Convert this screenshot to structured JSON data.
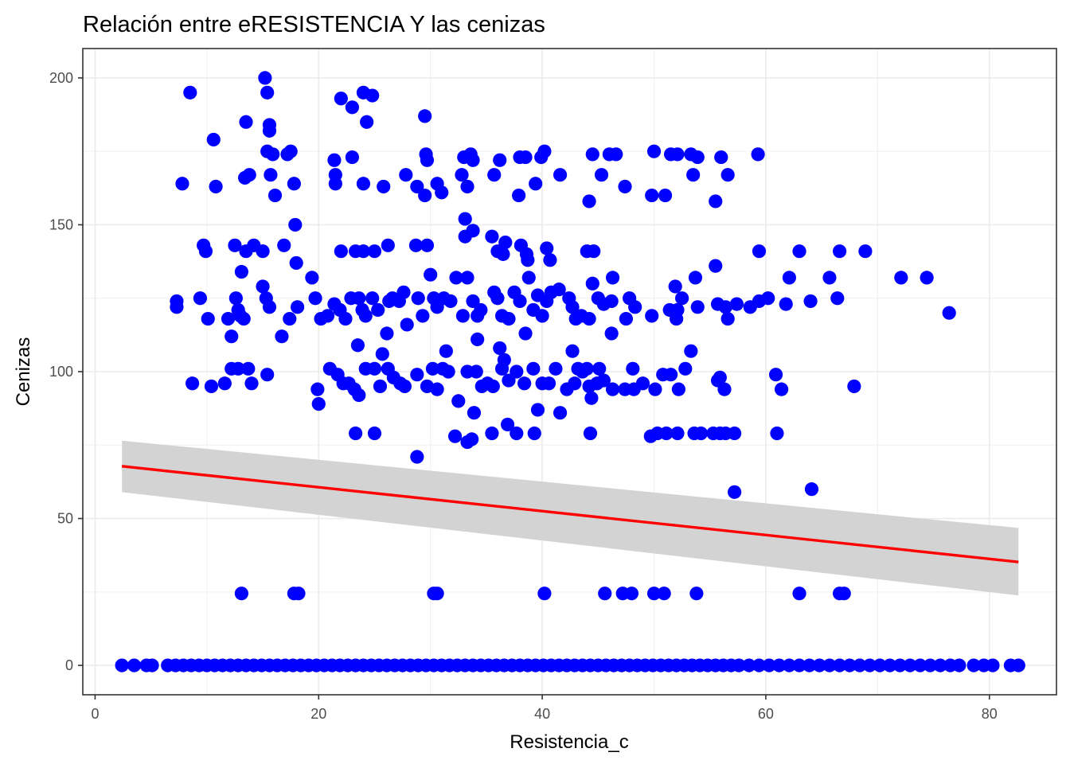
{
  "chart_data": {
    "type": "scatter",
    "title": "Relación entre eRESISTENCIA Y las cenizas",
    "xlabel": "Resistencia_c",
    "ylabel": "Cenizas",
    "xlim": [
      -1.1,
      86
    ],
    "ylim": [
      -10,
      210
    ],
    "x_ticks": [
      0,
      20,
      40,
      60,
      80
    ],
    "y_ticks": [
      0,
      50,
      100,
      150,
      200
    ],
    "x_minor": [
      10,
      30,
      50,
      70
    ],
    "y_minor": [
      25,
      75,
      125,
      175
    ],
    "grid": true,
    "theme": "bw",
    "point_color": "#0000ff",
    "line_color": "#ff0000",
    "band_color": "#d3d3d3",
    "points": [
      [
        8.5,
        195
      ],
      [
        15.2,
        200
      ],
      [
        15.4,
        195
      ],
      [
        22,
        193
      ],
      [
        23,
        190
      ],
      [
        24,
        195
      ],
      [
        24.8,
        194
      ],
      [
        29.5,
        187
      ],
      [
        13.5,
        185
      ],
      [
        24.3,
        185
      ],
      [
        15.6,
        184
      ],
      [
        15.6,
        182
      ],
      [
        10.6,
        179
      ],
      [
        17.5,
        175
      ],
      [
        15.4,
        175
      ],
      [
        15.9,
        174
      ],
      [
        17.2,
        174
      ],
      [
        23,
        173
      ],
      [
        29.6,
        174
      ],
      [
        29.7,
        172
      ],
      [
        33,
        173
      ],
      [
        33.6,
        174
      ],
      [
        33.8,
        172
      ],
      [
        36.2,
        172
      ],
      [
        38,
        173
      ],
      [
        38.5,
        173
      ],
      [
        39.9,
        173
      ],
      [
        40.2,
        175
      ],
      [
        44.5,
        174
      ],
      [
        46,
        174
      ],
      [
        46.6,
        174
      ],
      [
        50,
        175
      ],
      [
        51.5,
        174
      ],
      [
        52.1,
        174
      ],
      [
        53.3,
        174
      ],
      [
        53.9,
        173
      ],
      [
        56,
        173
      ],
      [
        59.3,
        174
      ],
      [
        21.4,
        172
      ],
      [
        7.8,
        164
      ],
      [
        10.8,
        163
      ],
      [
        13.4,
        166
      ],
      [
        13.8,
        167
      ],
      [
        15.7,
        167
      ],
      [
        17.8,
        164
      ],
      [
        21.5,
        167
      ],
      [
        21.5,
        164
      ],
      [
        24,
        164
      ],
      [
        25.8,
        163
      ],
      [
        27.8,
        167
      ],
      [
        28.8,
        163
      ],
      [
        29.5,
        160
      ],
      [
        30.6,
        164
      ],
      [
        31,
        161
      ],
      [
        32.8,
        167
      ],
      [
        33.3,
        163
      ],
      [
        35.7,
        167
      ],
      [
        37.9,
        160
      ],
      [
        39.4,
        164
      ],
      [
        41.6,
        167
      ],
      [
        44.2,
        158
      ],
      [
        45.3,
        167
      ],
      [
        47.4,
        163
      ],
      [
        49.8,
        160
      ],
      [
        51,
        160
      ],
      [
        53.5,
        167
      ],
      [
        55.5,
        158
      ],
      [
        56.6,
        167
      ],
      [
        16.1,
        160
      ],
      [
        33.1,
        152
      ],
      [
        33.8,
        148
      ],
      [
        17.9,
        150
      ],
      [
        9.7,
        143
      ],
      [
        9.9,
        141
      ],
      [
        12.5,
        143
      ],
      [
        13.5,
        141
      ],
      [
        14.2,
        143
      ],
      [
        15,
        141
      ],
      [
        16.9,
        143
      ],
      [
        18,
        137
      ],
      [
        22,
        141
      ],
      [
        23.3,
        141
      ],
      [
        24,
        141
      ],
      [
        25,
        141
      ],
      [
        26.2,
        143
      ],
      [
        28.7,
        143
      ],
      [
        29.7,
        143
      ],
      [
        33.1,
        146
      ],
      [
        35.5,
        146
      ],
      [
        36,
        141
      ],
      [
        36.5,
        140
      ],
      [
        36.7,
        144
      ],
      [
        38.1,
        143
      ],
      [
        38.6,
        140
      ],
      [
        38.7,
        138
      ],
      [
        40.4,
        142
      ],
      [
        40.7,
        138
      ],
      [
        44,
        141
      ],
      [
        44.6,
        141
      ],
      [
        59.4,
        141
      ],
      [
        63,
        141
      ],
      [
        66.6,
        141
      ],
      [
        68.9,
        141
      ],
      [
        13.1,
        134
      ],
      [
        7.3,
        124
      ],
      [
        7.3,
        122
      ],
      [
        9.4,
        125
      ],
      [
        10.1,
        118
      ],
      [
        11.9,
        118
      ],
      [
        12.2,
        112
      ],
      [
        12.6,
        125
      ],
      [
        12.8,
        121
      ],
      [
        13,
        119
      ],
      [
        13.3,
        118
      ],
      [
        15,
        129
      ],
      [
        15.3,
        125
      ],
      [
        15.6,
        122
      ],
      [
        16.7,
        112
      ],
      [
        17.4,
        118
      ],
      [
        18.1,
        122
      ],
      [
        19.4,
        132
      ],
      [
        19.7,
        125
      ],
      [
        20.2,
        118
      ],
      [
        20.8,
        119
      ],
      [
        21.4,
        123
      ],
      [
        21.9,
        121
      ],
      [
        22.4,
        118
      ],
      [
        22.9,
        125
      ],
      [
        23.6,
        125
      ],
      [
        23.9,
        121
      ],
      [
        24.2,
        119
      ],
      [
        24.8,
        125
      ],
      [
        25.3,
        121
      ],
      [
        26.1,
        113
      ],
      [
        26.3,
        124
      ],
      [
        26.6,
        125
      ],
      [
        27.2,
        124
      ],
      [
        27.6,
        127
      ],
      [
        27.9,
        116
      ],
      [
        28.9,
        125
      ],
      [
        29.3,
        119
      ],
      [
        30,
        133
      ],
      [
        30.3,
        125
      ],
      [
        30.6,
        122
      ],
      [
        31.2,
        125
      ],
      [
        31.8,
        124
      ],
      [
        32.3,
        132
      ],
      [
        32.9,
        119
      ],
      [
        33.3,
        132
      ],
      [
        33.8,
        124
      ],
      [
        34.2,
        119
      ],
      [
        34.5,
        121
      ],
      [
        35.7,
        127
      ],
      [
        36,
        125
      ],
      [
        36.4,
        119
      ],
      [
        37,
        118
      ],
      [
        37.5,
        127
      ],
      [
        38,
        124
      ],
      [
        38.5,
        113
      ],
      [
        38.8,
        132
      ],
      [
        39.2,
        121
      ],
      [
        39.6,
        126
      ],
      [
        40,
        119
      ],
      [
        40.4,
        124
      ],
      [
        40.8,
        127
      ],
      [
        41.5,
        128
      ],
      [
        42.4,
        125
      ],
      [
        42.7,
        122
      ],
      [
        43,
        118
      ],
      [
        43.5,
        119
      ],
      [
        44.2,
        118
      ],
      [
        44.5,
        130
      ],
      [
        45,
        125
      ],
      [
        45.5,
        123
      ],
      [
        46.2,
        124
      ],
      [
        46.2,
        113
      ],
      [
        46.3,
        132
      ],
      [
        47.5,
        118
      ],
      [
        47.8,
        125
      ],
      [
        48.3,
        122
      ],
      [
        49.8,
        119
      ],
      [
        51.4,
        121
      ],
      [
        51.9,
        129
      ],
      [
        52.1,
        121
      ],
      [
        52,
        118
      ],
      [
        52.5,
        125
      ],
      [
        53.3,
        107
      ],
      [
        53.7,
        132
      ],
      [
        53.9,
        122
      ],
      [
        55.5,
        136
      ],
      [
        55.7,
        123
      ],
      [
        56.4,
        122
      ],
      [
        56.6,
        118
      ],
      [
        57.4,
        123
      ],
      [
        58.6,
        122
      ],
      [
        59.4,
        124
      ],
      [
        60.2,
        125
      ],
      [
        61.8,
        123
      ],
      [
        62.1,
        132
      ],
      [
        64,
        124
      ],
      [
        65.7,
        132
      ],
      [
        66.4,
        125
      ],
      [
        72.1,
        132
      ],
      [
        74.4,
        132
      ],
      [
        76.4,
        120
      ],
      [
        23.5,
        109
      ],
      [
        25.7,
        106
      ],
      [
        31.4,
        107
      ],
      [
        34.2,
        111
      ],
      [
        36.2,
        108
      ],
      [
        36.6,
        104
      ],
      [
        42.7,
        107
      ],
      [
        11.6,
        96
      ],
      [
        12.2,
        101
      ],
      [
        12.8,
        101
      ],
      [
        13.7,
        101
      ],
      [
        14,
        96
      ],
      [
        15.4,
        99
      ],
      [
        8.7,
        96
      ],
      [
        10.4,
        95
      ],
      [
        19.9,
        94
      ],
      [
        20,
        89
      ],
      [
        21,
        101
      ],
      [
        21.7,
        99
      ],
      [
        22.2,
        96
      ],
      [
        22.7,
        96
      ],
      [
        23.2,
        94
      ],
      [
        23.6,
        92
      ],
      [
        24.2,
        101
      ],
      [
        25,
        101
      ],
      [
        25.5,
        95
      ],
      [
        26.2,
        101
      ],
      [
        26.7,
        98
      ],
      [
        27.3,
        96
      ],
      [
        27.7,
        95
      ],
      [
        28.8,
        99
      ],
      [
        29.7,
        95
      ],
      [
        30.2,
        101
      ],
      [
        30.6,
        94
      ],
      [
        31.1,
        101
      ],
      [
        31.6,
        100
      ],
      [
        32.5,
        90
      ],
      [
        33.3,
        100
      ],
      [
        33.9,
        86
      ],
      [
        34.1,
        100
      ],
      [
        34.6,
        95
      ],
      [
        35.1,
        96
      ],
      [
        35.6,
        95
      ],
      [
        36.4,
        101
      ],
      [
        37,
        97
      ],
      [
        37.7,
        100
      ],
      [
        38.4,
        96
      ],
      [
        39.2,
        101
      ],
      [
        39.6,
        87
      ],
      [
        40,
        96
      ],
      [
        40.6,
        96
      ],
      [
        41.2,
        101
      ],
      [
        41.6,
        86
      ],
      [
        42.2,
        94
      ],
      [
        42.9,
        96
      ],
      [
        43.2,
        101
      ],
      [
        43.6,
        100
      ],
      [
        44,
        101
      ],
      [
        44.2,
        95
      ],
      [
        44.4,
        91
      ],
      [
        44.9,
        96
      ],
      [
        45.1,
        101
      ],
      [
        45.5,
        97
      ],
      [
        46.3,
        94
      ],
      [
        47.4,
        94
      ],
      [
        48.1,
        101
      ],
      [
        48.2,
        94
      ],
      [
        49,
        96
      ],
      [
        50.1,
        94
      ],
      [
        50.8,
        99
      ],
      [
        51.5,
        99
      ],
      [
        52.2,
        94
      ],
      [
        52.8,
        101
      ],
      [
        55.7,
        97
      ],
      [
        55.9,
        98
      ],
      [
        56.3,
        94
      ],
      [
        60.9,
        99
      ],
      [
        61.4,
        94
      ],
      [
        67.9,
        95
      ],
      [
        23.3,
        79
      ],
      [
        25,
        79
      ],
      [
        28.8,
        71
      ],
      [
        32.2,
        78
      ],
      [
        33.3,
        76
      ],
      [
        33.7,
        77
      ],
      [
        35.5,
        79
      ],
      [
        36.9,
        82
      ],
      [
        37.7,
        79
      ],
      [
        39.3,
        79
      ],
      [
        44.3,
        79
      ],
      [
        49.7,
        78
      ],
      [
        50.3,
        79
      ],
      [
        51.1,
        79
      ],
      [
        52.1,
        79
      ],
      [
        53.6,
        79
      ],
      [
        54.2,
        79
      ],
      [
        55.3,
        79
      ],
      [
        55.9,
        79
      ],
      [
        56.4,
        79
      ],
      [
        57.2,
        79
      ],
      [
        61,
        79
      ],
      [
        57.2,
        59
      ],
      [
        64.1,
        60
      ],
      [
        13.1,
        24.5
      ],
      [
        17.8,
        24.5
      ],
      [
        18.2,
        24.5
      ],
      [
        30.3,
        24.5
      ],
      [
        30.6,
        24.5
      ],
      [
        40.2,
        24.5
      ],
      [
        45.6,
        24.5
      ],
      [
        47.2,
        24.5
      ],
      [
        48,
        24.5
      ],
      [
        50,
        24.5
      ],
      [
        50.9,
        24.5
      ],
      [
        53.8,
        24.5
      ],
      [
        63,
        24.5
      ],
      [
        66.6,
        24.5
      ],
      [
        67,
        24.5
      ],
      [
        2.4,
        0
      ],
      [
        3.5,
        0
      ],
      [
        4.6,
        0
      ],
      [
        5.1,
        0
      ],
      [
        6.5,
        0
      ],
      [
        7.2,
        0
      ],
      [
        7.9,
        0
      ],
      [
        8.6,
        0
      ],
      [
        9.3,
        0
      ],
      [
        10,
        0
      ],
      [
        10.7,
        0
      ],
      [
        11.4,
        0
      ],
      [
        12.1,
        0
      ],
      [
        12.8,
        0
      ],
      [
        13.5,
        0
      ],
      [
        14.2,
        0
      ],
      [
        14.9,
        0
      ],
      [
        15.6,
        0
      ],
      [
        16.3,
        0
      ],
      [
        17,
        0
      ],
      [
        17.7,
        0
      ],
      [
        18.4,
        0
      ],
      [
        19.1,
        0
      ],
      [
        19.8,
        0
      ],
      [
        20.5,
        0
      ],
      [
        21.2,
        0
      ],
      [
        21.9,
        0
      ],
      [
        22.6,
        0
      ],
      [
        23.3,
        0
      ],
      [
        24,
        0
      ],
      [
        24.7,
        0
      ],
      [
        25.4,
        0
      ],
      [
        26.1,
        0
      ],
      [
        26.8,
        0
      ],
      [
        27.5,
        0
      ],
      [
        28.2,
        0
      ],
      [
        28.9,
        0
      ],
      [
        29.6,
        0
      ],
      [
        30.3,
        0
      ],
      [
        31,
        0
      ],
      [
        31.7,
        0
      ],
      [
        32.4,
        0
      ],
      [
        33.1,
        0
      ],
      [
        33.8,
        0
      ],
      [
        34.5,
        0
      ],
      [
        35.2,
        0
      ],
      [
        35.9,
        0
      ],
      [
        36.6,
        0
      ],
      [
        37.3,
        0
      ],
      [
        38,
        0
      ],
      [
        38.7,
        0
      ],
      [
        39.4,
        0
      ],
      [
        40.1,
        0
      ],
      [
        40.8,
        0
      ],
      [
        41.5,
        0
      ],
      [
        42.2,
        0
      ],
      [
        42.9,
        0
      ],
      [
        43.6,
        0
      ],
      [
        44.3,
        0
      ],
      [
        45,
        0
      ],
      [
        45.7,
        0
      ],
      [
        46.4,
        0
      ],
      [
        47.1,
        0
      ],
      [
        47.8,
        0
      ],
      [
        48.5,
        0
      ],
      [
        49.2,
        0
      ],
      [
        49.9,
        0
      ],
      [
        50.6,
        0
      ],
      [
        51.3,
        0
      ],
      [
        52,
        0
      ],
      [
        52.7,
        0
      ],
      [
        53.4,
        0
      ],
      [
        54.1,
        0
      ],
      [
        54.8,
        0
      ],
      [
        55.5,
        0
      ],
      [
        56.2,
        0
      ],
      [
        56.9,
        0
      ],
      [
        57.6,
        0
      ],
      [
        58.5,
        0
      ],
      [
        59.4,
        0
      ],
      [
        60.3,
        0
      ],
      [
        61.2,
        0
      ],
      [
        62.1,
        0
      ],
      [
        63,
        0
      ],
      [
        63.9,
        0
      ],
      [
        64.8,
        0
      ],
      [
        65.7,
        0
      ],
      [
        66.6,
        0
      ],
      [
        67.5,
        0
      ],
      [
        68.4,
        0
      ],
      [
        69.3,
        0
      ],
      [
        70.2,
        0
      ],
      [
        71.1,
        0
      ],
      [
        72,
        0
      ],
      [
        72.9,
        0
      ],
      [
        73.8,
        0
      ],
      [
        74.7,
        0
      ],
      [
        75.6,
        0
      ],
      [
        76.5,
        0
      ],
      [
        77.3,
        0
      ],
      [
        78.6,
        0
      ],
      [
        79.5,
        0
      ],
      [
        80.3,
        0
      ],
      [
        81.9,
        0
      ],
      [
        82.6,
        0
      ]
    ],
    "trend": {
      "x": [
        2.4,
        82.6
      ],
      "y": [
        67.8,
        35.2
      ],
      "ci_lower": [
        59,
        23.8
      ],
      "ci_upper": [
        76.5,
        46.8
      ]
    }
  }
}
